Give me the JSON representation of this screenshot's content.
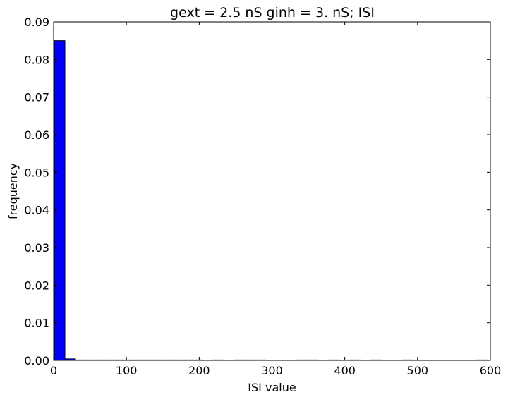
{
  "chart_data": {
    "type": "bar",
    "title": "gext = 2.5 nS ginh = 3. nS; ISI",
    "xlabel": "ISI value",
    "ylabel": "frequency",
    "xlim": [
      0,
      600
    ],
    "ylim": [
      0,
      0.09
    ],
    "xticks": [
      "0",
      "100",
      "200",
      "300",
      "400",
      "500",
      "600"
    ],
    "yticks": [
      "0.00",
      "0.01",
      "0.02",
      "0.03",
      "0.04",
      "0.05",
      "0.06",
      "0.07",
      "0.08",
      "0.09"
    ],
    "bin_width": 14.5,
    "bins": [
      {
        "x0": 1,
        "x1": 15.5,
        "value": 0.085
      },
      {
        "x0": 15.5,
        "x1": 30,
        "value": 0.0004
      },
      {
        "x0": 30,
        "x1": 44.5,
        "value": 0.0001
      },
      {
        "x0": 44.5,
        "x1": 59,
        "value": 0.0001
      },
      {
        "x0": 59,
        "x1": 73.5,
        "value": 0.0001
      },
      {
        "x0": 73.5,
        "x1": 88,
        "value": 0.0001
      },
      {
        "x0": 88,
        "x1": 102.5,
        "value": 0.0001
      },
      {
        "x0": 102.5,
        "x1": 117,
        "value": 0.0001
      },
      {
        "x0": 117,
        "x1": 131.5,
        "value": 0.0001
      },
      {
        "x0": 131.5,
        "x1": 146,
        "value": 0.0001
      },
      {
        "x0": 146,
        "x1": 160.5,
        "value": 0.0001
      },
      {
        "x0": 160.5,
        "x1": 175,
        "value": 0.0001
      },
      {
        "x0": 175,
        "x1": 189.5,
        "value": 0.0001
      },
      {
        "x0": 189.5,
        "x1": 204,
        "value": 5e-05
      },
      {
        "x0": 218.5,
        "x1": 233,
        "value": 0.0001
      },
      {
        "x0": 247.5,
        "x1": 262,
        "value": 0.0001
      },
      {
        "x0": 262,
        "x1": 276.5,
        "value": 0.0001
      },
      {
        "x0": 276.5,
        "x1": 291,
        "value": 5e-05
      },
      {
        "x0": 334.5,
        "x1": 349,
        "value": 0.0001
      },
      {
        "x0": 349,
        "x1": 363.5,
        "value": 5e-05
      },
      {
        "x0": 378,
        "x1": 392.5,
        "value": 0.0001
      },
      {
        "x0": 407,
        "x1": 421.5,
        "value": 0.0001
      },
      {
        "x0": 436,
        "x1": 450.5,
        "value": 0.0001
      },
      {
        "x0": 479.5,
        "x1": 494,
        "value": 0.0001
      },
      {
        "x0": 581,
        "x1": 595.5,
        "value": 0.0001
      }
    ],
    "bar_color": "#0000ff",
    "edge_color": "#000000",
    "grid": false,
    "legend": null
  }
}
